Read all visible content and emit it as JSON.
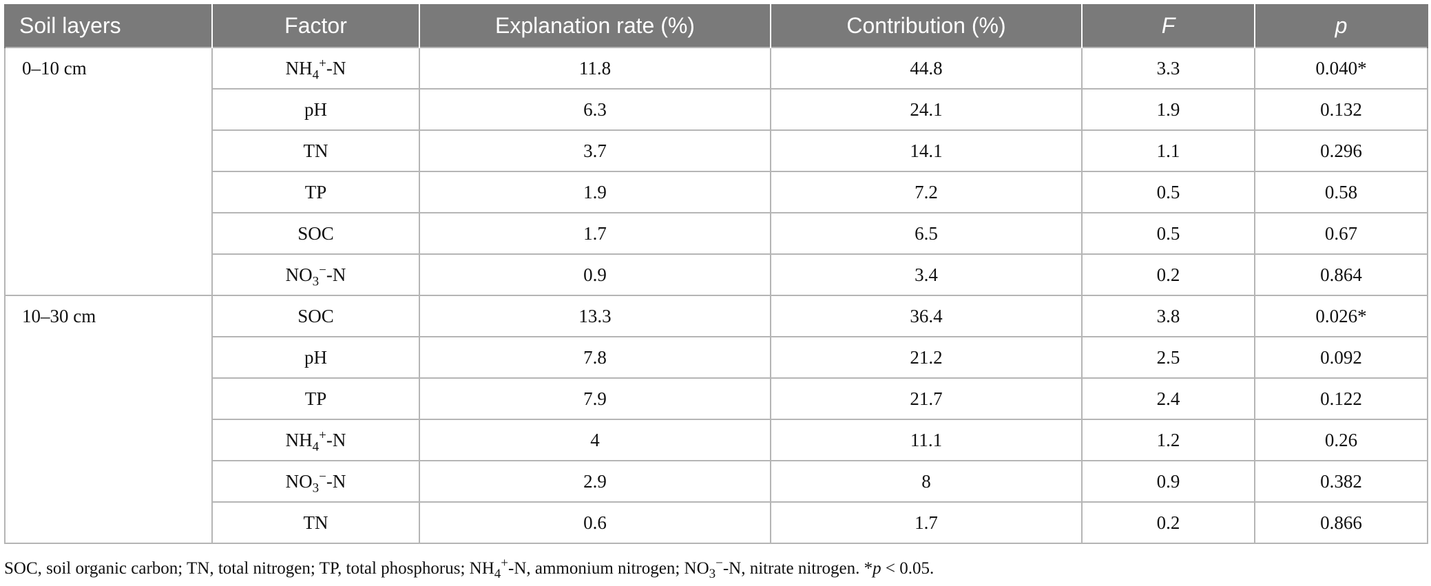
{
  "table": {
    "headers": [
      "Soil layers",
      "Factor",
      "Explanation rate (%)",
      "Contribution (%)",
      "F",
      "p"
    ],
    "groups": [
      {
        "layer": "0–10 cm",
        "rows": [
          {
            "factor_base": "NH",
            "factor_sub": "4",
            "factor_sup": "+",
            "factor_tail": "-N",
            "explanation": "11.8",
            "contribution": "44.8",
            "f": "3.3",
            "p": "0.040*"
          },
          {
            "factor_base": "pH",
            "factor_sub": "",
            "factor_sup": "",
            "factor_tail": "",
            "explanation": "6.3",
            "contribution": "24.1",
            "f": "1.9",
            "p": "0.132"
          },
          {
            "factor_base": "TN",
            "factor_sub": "",
            "factor_sup": "",
            "factor_tail": "",
            "explanation": "3.7",
            "contribution": "14.1",
            "f": "1.1",
            "p": "0.296"
          },
          {
            "factor_base": "TP",
            "factor_sub": "",
            "factor_sup": "",
            "factor_tail": "",
            "explanation": "1.9",
            "contribution": "7.2",
            "f": "0.5",
            "p": "0.58"
          },
          {
            "factor_base": "SOC",
            "factor_sub": "",
            "factor_sup": "",
            "factor_tail": "",
            "explanation": "1.7",
            "contribution": "6.5",
            "f": "0.5",
            "p": "0.67"
          },
          {
            "factor_base": "NO",
            "factor_sub": "3",
            "factor_sup": "−",
            "factor_tail": "-N",
            "explanation": "0.9",
            "contribution": "3.4",
            "f": "0.2",
            "p": "0.864"
          }
        ]
      },
      {
        "layer": "10–30 cm",
        "rows": [
          {
            "factor_base": "SOC",
            "factor_sub": "",
            "factor_sup": "",
            "factor_tail": "",
            "explanation": "13.3",
            "contribution": "36.4",
            "f": "3.8",
            "p": "0.026*"
          },
          {
            "factor_base": "pH",
            "factor_sub": "",
            "factor_sup": "",
            "factor_tail": "",
            "explanation": "7.8",
            "contribution": "21.2",
            "f": "2.5",
            "p": "0.092"
          },
          {
            "factor_base": "TP",
            "factor_sub": "",
            "factor_sup": "",
            "factor_tail": "",
            "explanation": "7.9",
            "contribution": "21.7",
            "f": "2.4",
            "p": "0.122"
          },
          {
            "factor_base": "NH",
            "factor_sub": "4",
            "factor_sup": "+",
            "factor_tail": "-N",
            "explanation": "4",
            "contribution": "11.1",
            "f": "1.2",
            "p": "0.26"
          },
          {
            "factor_base": "NO",
            "factor_sub": "3",
            "factor_sup": "−",
            "factor_tail": "-N",
            "explanation": "2.9",
            "contribution": "8",
            "f": "0.9",
            "p": "0.382"
          },
          {
            "factor_base": "TN",
            "factor_sub": "",
            "factor_sup": "",
            "factor_tail": "",
            "explanation": "0.6",
            "contribution": "1.7",
            "f": "0.2",
            "p": "0.866"
          }
        ]
      }
    ]
  },
  "footnote": {
    "part1": "SOC, soil organic carbon; TN, total nitrogen; TP, total phosphorus; NH",
    "nh_sub": "4",
    "nh_sup": "+",
    "part2": "-N, ammonium nitrogen; NO",
    "no_sub": "3",
    "no_sup": "−",
    "part3": "-N, nitrate nitrogen. ",
    "star": "*",
    "p_symbol": "p",
    "part4": " < 0.05."
  }
}
